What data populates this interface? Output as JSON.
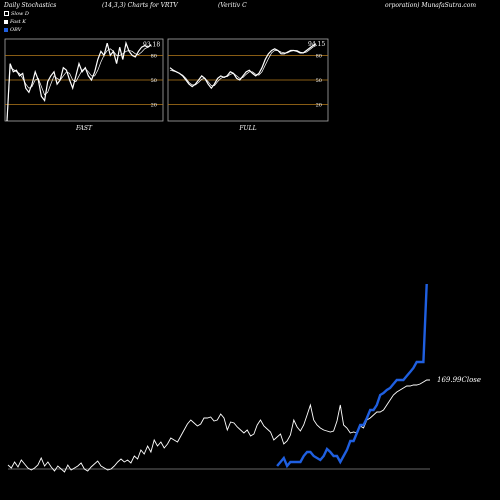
{
  "header": {
    "title": "Daily Stochastics",
    "params": "(14,3,3) Charts for VRTV",
    "company_a": "(Veritiv    C",
    "company_b": "orporation) MunafaSutra.com"
  },
  "legend": [
    {
      "label": "Slow  D",
      "color": "#ffffff",
      "style": "outline"
    },
    {
      "label": "Fast K",
      "color": "#ffffff",
      "style": "filled"
    },
    {
      "label": "OBV",
      "color": "#1f5fe0",
      "style": "filled"
    }
  ],
  "colors": {
    "background": "#000000",
    "level_line": "#b57a1a",
    "obv": "#1f5fe0",
    "price": "#ffffff",
    "panel_border": "#aaaaaa"
  },
  "chart_data": [
    {
      "type": "line",
      "title": "FAST",
      "last_value_label": "93.18",
      "ylim": [
        0,
        100
      ],
      "level_labels": [
        "80",
        "50",
        "20"
      ],
      "levels": [
        80,
        50,
        20
      ],
      "series": [
        {
          "values": [
            0,
            70,
            60,
            62,
            55,
            58,
            40,
            35,
            45,
            60,
            50,
            30,
            25,
            48,
            55,
            60,
            45,
            50,
            65,
            62,
            50,
            40,
            55,
            70,
            60,
            65,
            55,
            50,
            60,
            75,
            85,
            80,
            95,
            80,
            85,
            70,
            90,
            75,
            95,
            85,
            80,
            78,
            85,
            90,
            92,
            90,
            93.18
          ]
        },
        {
          "values": [
            0,
            65,
            63,
            60,
            58,
            52,
            45,
            40,
            42,
            50,
            52,
            42,
            32,
            35,
            45,
            55,
            52,
            50,
            55,
            60,
            58,
            50,
            48,
            55,
            62,
            64,
            60,
            55,
            55,
            62,
            72,
            80,
            86,
            88,
            85,
            80,
            80,
            82,
            85,
            86,
            85,
            82,
            81,
            84,
            88,
            90,
            92
          ]
        }
      ]
    },
    {
      "type": "line",
      "title": "FULL",
      "last_value_label": "94.15",
      "ylim": [
        0,
        100
      ],
      "level_labels": [
        "80",
        "50",
        "20"
      ],
      "levels": [
        80,
        50,
        20
      ],
      "series": [
        {
          "values": [
            65,
            62,
            60,
            58,
            55,
            50,
            45,
            42,
            45,
            50,
            55,
            52,
            45,
            40,
            45,
            52,
            55,
            53,
            55,
            60,
            58,
            52,
            50,
            55,
            60,
            62,
            58,
            55,
            58,
            65,
            75,
            82,
            86,
            88,
            86,
            82,
            82,
            84,
            86,
            86,
            85,
            83,
            83,
            86,
            89,
            92,
            94.15
          ]
        },
        {
          "values": [
            62,
            61,
            60,
            58,
            56,
            52,
            47,
            44,
            44,
            47,
            51,
            52,
            48,
            43,
            43,
            48,
            52,
            54,
            54,
            57,
            58,
            55,
            52,
            53,
            57,
            60,
            60,
            57,
            56,
            60,
            68,
            76,
            83,
            86,
            86,
            84,
            83,
            83,
            85,
            86,
            86,
            84,
            83,
            84,
            87,
            90,
            92
          ]
        }
      ]
    },
    {
      "type": "line",
      "price_label": "169.99",
      "price_label_suffix": "Close",
      "series": [
        {
          "name": "Close",
          "values": [
            465,
            468,
            462,
            467,
            460,
            464,
            468,
            470,
            468,
            465,
            458,
            466,
            462,
            467,
            471,
            466,
            469,
            472,
            465,
            470,
            468,
            466,
            463,
            469,
            471,
            467,
            464,
            461,
            466,
            468,
            470,
            469,
            466,
            462,
            459,
            462,
            460,
            463,
            456,
            459,
            450,
            454,
            446,
            452,
            440,
            446,
            442,
            448,
            444,
            438,
            440,
            442,
            436,
            430,
            424,
            420,
            423,
            426,
            424,
            418,
            418,
            417,
            421,
            420,
            414,
            418,
            430,
            422,
            423,
            427,
            430,
            433,
            430,
            436,
            434,
            425,
            420,
            426,
            429,
            432,
            440,
            437,
            434,
            444,
            441,
            435,
            420,
            427,
            431,
            425,
            415,
            405,
            420,
            425,
            428,
            430,
            431,
            432,
            431,
            421,
            405,
            425,
            428,
            433,
            432,
            433,
            426,
            428,
            420,
            418,
            415,
            412,
            412,
            410,
            405,
            400,
            395,
            392,
            390,
            388,
            386,
            386,
            385,
            385,
            384,
            382,
            380,
            380
          ]
        },
        {
          "name": "OBV",
          "values": [
            null,
            null,
            null,
            null,
            null,
            null,
            null,
            null,
            null,
            null,
            null,
            null,
            null,
            null,
            null,
            null,
            null,
            null,
            null,
            null,
            null,
            null,
            null,
            null,
            null,
            null,
            null,
            null,
            null,
            null,
            null,
            null,
            null,
            null,
            null,
            null,
            null,
            null,
            null,
            null,
            null,
            null,
            null,
            null,
            null,
            null,
            null,
            null,
            null,
            null,
            null,
            null,
            null,
            null,
            null,
            null,
            null,
            null,
            null,
            null,
            null,
            null,
            null,
            null,
            null,
            null,
            null,
            null,
            null,
            null,
            null,
            null,
            null,
            null,
            null,
            null,
            null,
            null,
            null,
            null,
            null,
            466,
            462,
            458,
            466,
            462,
            462,
            462,
            462,
            456,
            452,
            452,
            456,
            458,
            460,
            456,
            449,
            452,
            456,
            456,
            462,
            456,
            450,
            441,
            441,
            433,
            425,
            425,
            418,
            410,
            410,
            405,
            395,
            393,
            390,
            388,
            384,
            380,
            380,
            380,
            376,
            372,
            368,
            362,
            362,
            362,
            284
          ]
        }
      ]
    }
  ]
}
